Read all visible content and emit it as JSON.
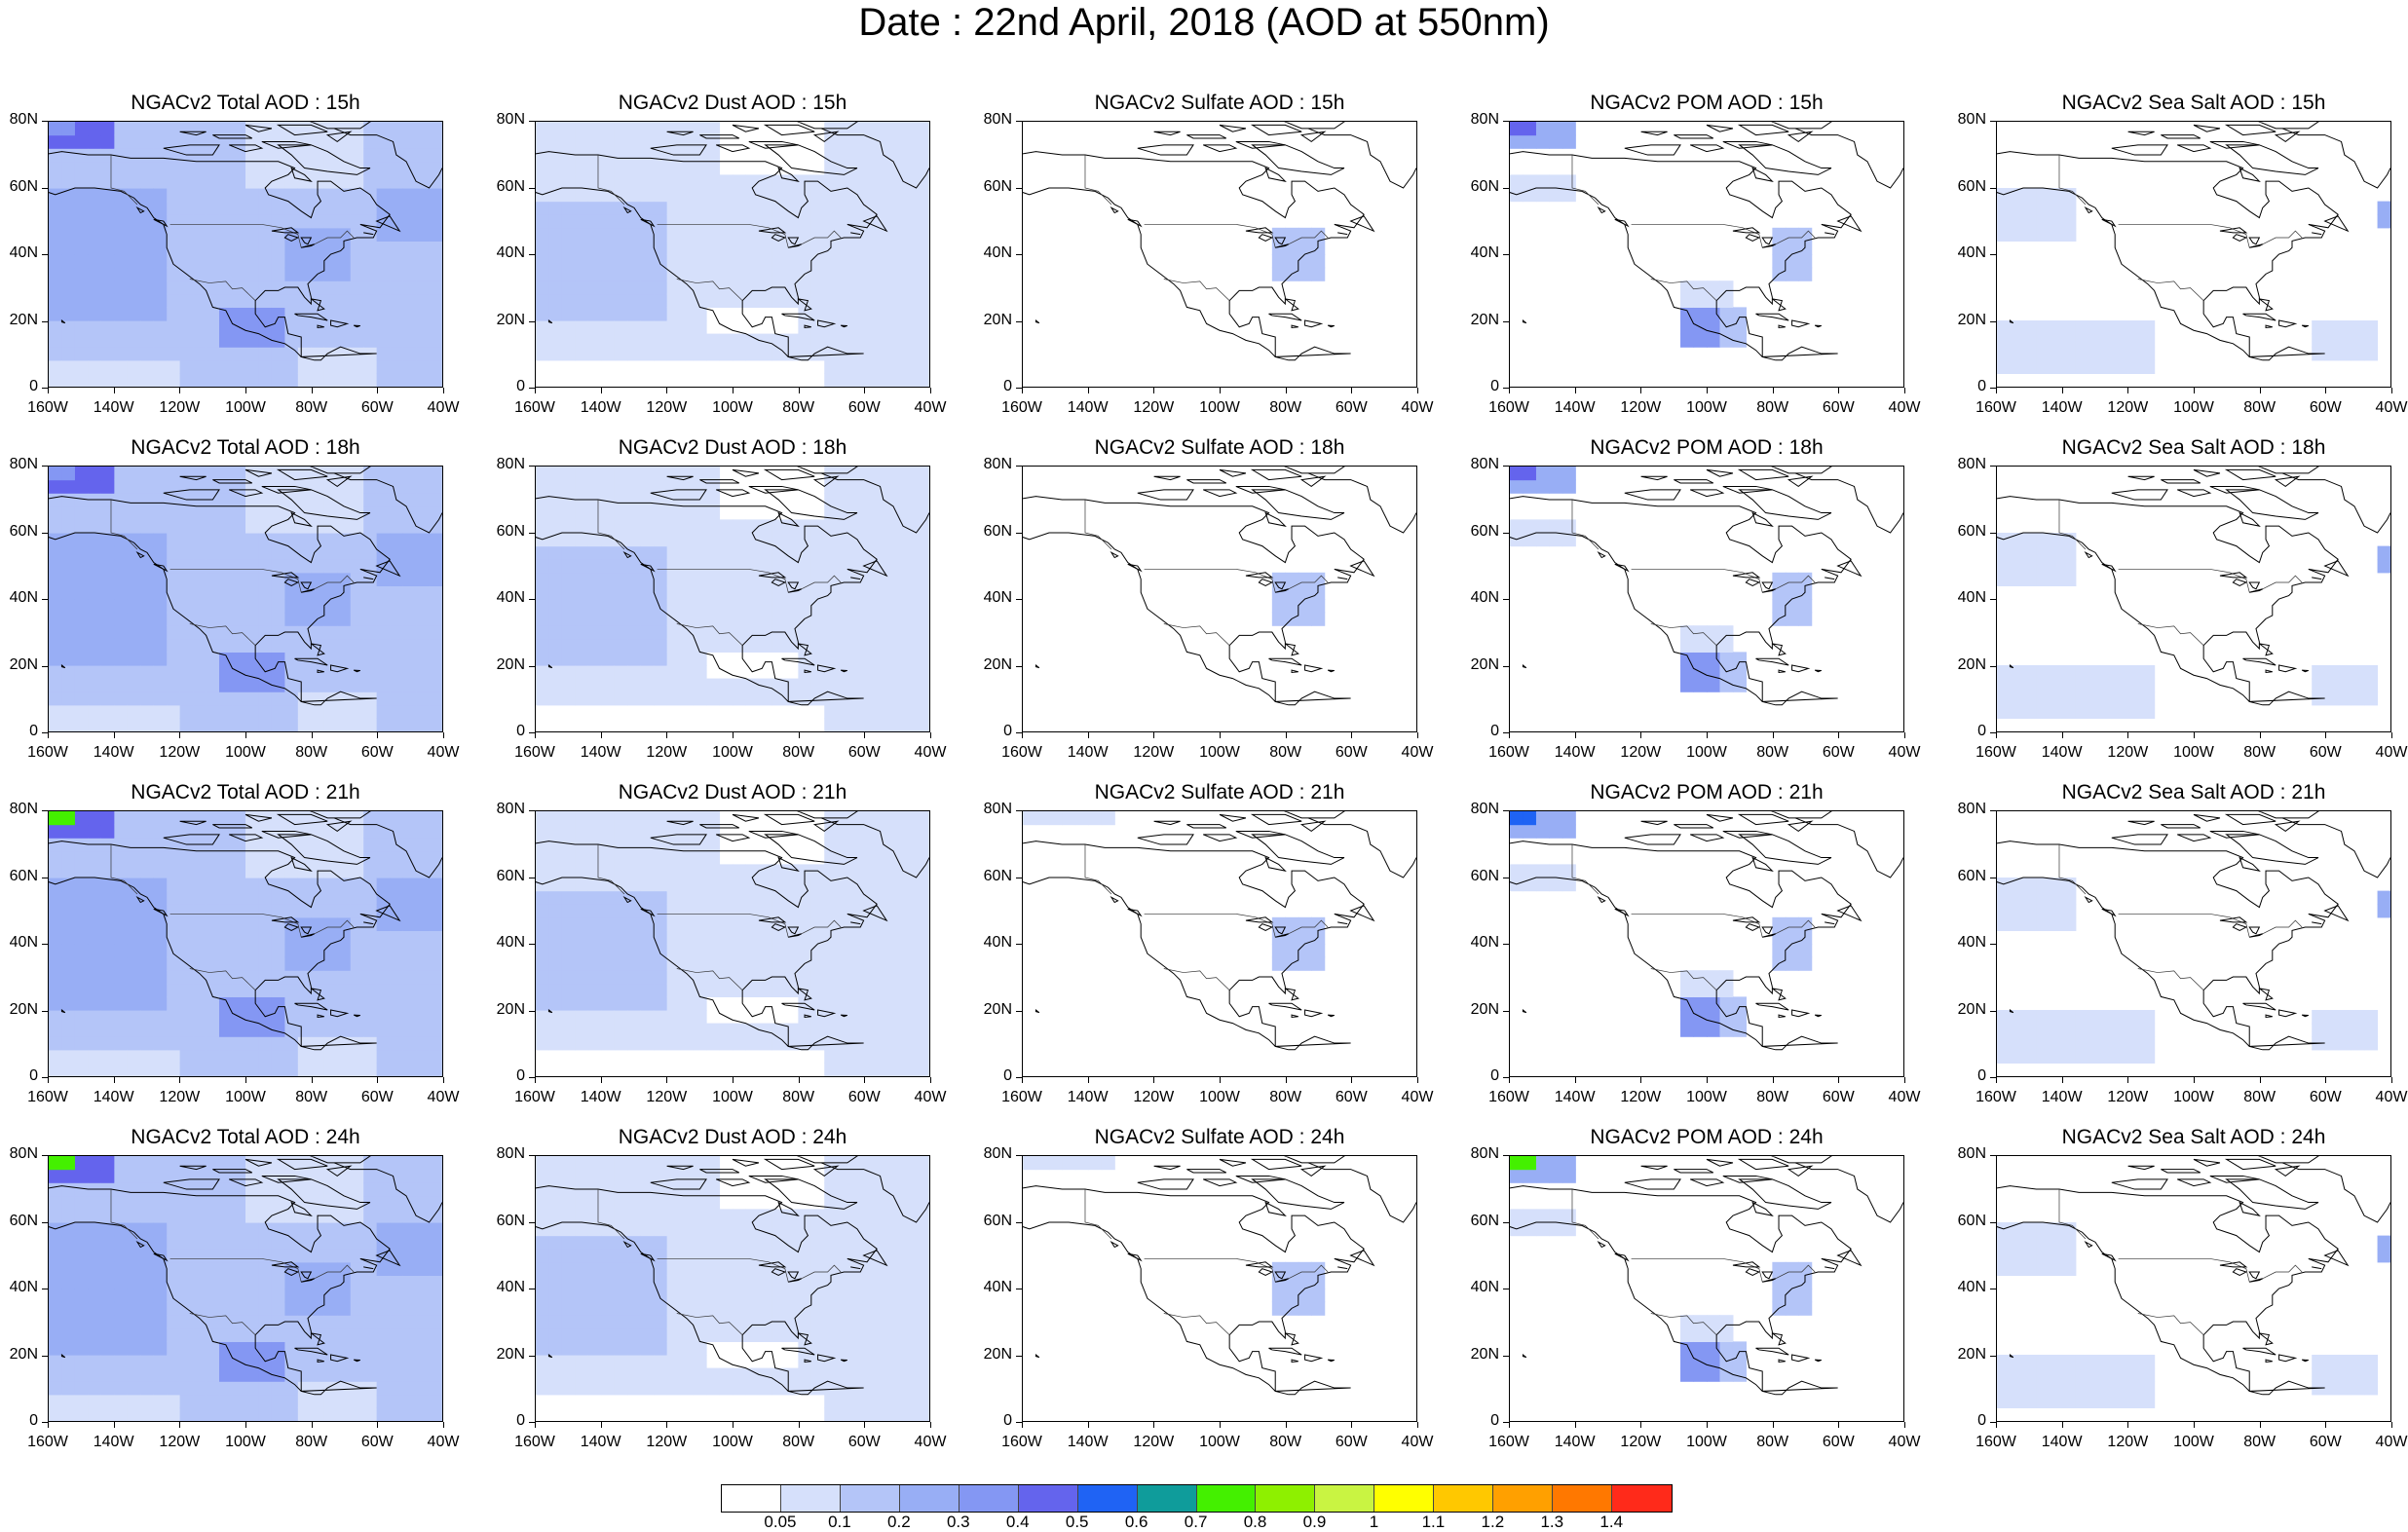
{
  "title": "Date : 22nd April, 2018 (AOD at 550nm)",
  "products": [
    {
      "key": "total",
      "prefix": "NGACv2 Total AOD : "
    },
    {
      "key": "dust",
      "prefix": "NGACv2 Dust AOD : "
    },
    {
      "key": "sulfate",
      "prefix": "NGACv2 Sulfate AOD : "
    },
    {
      "key": "pom",
      "prefix": "NGACv2 POM AOD : "
    },
    {
      "key": "seasalt",
      "prefix": "NGACv2 Sea Salt AOD : "
    }
  ],
  "hours": [
    "15h",
    "18h",
    "21h",
    "24h"
  ],
  "panel_titles": [
    [
      "NGACv2 Total AOD : 15h",
      "NGACv2 Dust AOD : 15h",
      "NGACv2 Sulfate AOD : 15h",
      "NGACv2 POM AOD : 15h",
      "NGACv2 Sea Salt AOD : 15h"
    ],
    [
      "NGACv2 Total AOD : 18h",
      "NGACv2 Dust AOD : 18h",
      "NGACv2 Sulfate AOD : 18h",
      "NGACv2 POM AOD : 18h",
      "NGACv2 Sea Salt AOD : 18h"
    ],
    [
      "NGACv2 Total AOD : 21h",
      "NGACv2 Dust AOD : 21h",
      "NGACv2 Sulfate AOD : 21h",
      "NGACv2 POM AOD : 21h",
      "NGACv2 Sea Salt AOD : 21h"
    ],
    [
      "NGACv2 Total AOD : 24h",
      "NGACv2 Dust AOD : 24h",
      "NGACv2 Sulfate AOD : 24h",
      "NGACv2 POM AOD : 24h",
      "NGACv2 Sea Salt  AOD : 24h"
    ]
  ],
  "lat_labels": [
    "80N",
    "60N",
    "40N",
    "20N",
    "0"
  ],
  "lon_labels": [
    "160W",
    "140W",
    "120W",
    "100W",
    "80W",
    "60W",
    "40W"
  ],
  "colorbar": {
    "colors": [
      "#ffffff",
      "#d6e0fb",
      "#b4c5f8",
      "#98aef5",
      "#8497f3",
      "#6464ed",
      "#1f63f4",
      "#0f9c9b",
      "#44f000",
      "#8ef000",
      "#c9f442",
      "#ffff00",
      "#ffc800",
      "#ffa000",
      "#ff7800",
      "#ff2a1a"
    ],
    "labels": [
      "0.05",
      "0.1",
      "0.2",
      "0.3",
      "0.4",
      "0.5",
      "0.6",
      "0.7",
      "0.8",
      "0.9",
      "1",
      "1.1",
      "1.2",
      "1.3",
      "1.4"
    ]
  }
}
